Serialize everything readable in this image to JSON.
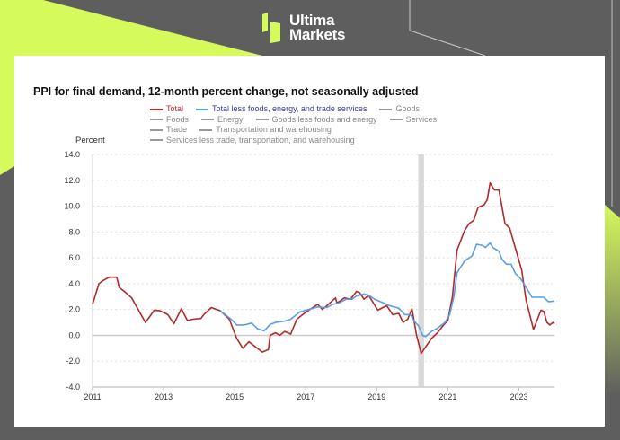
{
  "brand": {
    "line1": "Ultima",
    "line2": "Markets"
  },
  "colors": {
    "background": "#5e5e5e",
    "accent": "#d4fa5c",
    "total": "#b22a2a",
    "core": "#5b9ee6",
    "recession": "#d9d9d9"
  },
  "chart_data": {
    "type": "line",
    "title": "PPI for final demand, 12-month percent change, not seasonally adjusted",
    "ylabel": "Percent",
    "xlabel": "",
    "ylim": [
      -4,
      14
    ],
    "xlim": [
      2011,
      2024
    ],
    "yticks": [
      "14.0",
      "12.0",
      "10.0",
      "8.0",
      "6.0",
      "4.0",
      "2.0",
      "0.0",
      "-2.0",
      "-4.0"
    ],
    "xticks": [
      "2011",
      "2013",
      "2015",
      "2017",
      "2019",
      "2021",
      "2023"
    ],
    "recession": [
      2020.17,
      2020.33
    ],
    "legend": [
      [
        "Total",
        "Total less foods, energy, and trade services",
        "Goods"
      ],
      [
        "Foods",
        "Energy",
        "Goods less foods and energy",
        "Services"
      ],
      [
        "Trade",
        "Transportation and warehousing"
      ],
      [
        "Services less trade, transportation, and warehousing"
      ]
    ],
    "series": [
      {
        "name": "Total",
        "color": "#b22a2a",
        "points": [
          [
            2011.0,
            2.4
          ],
          [
            2011.18,
            4.0
          ],
          [
            2011.3,
            4.25
          ],
          [
            2011.47,
            4.5
          ],
          [
            2011.68,
            4.5
          ],
          [
            2011.75,
            3.7
          ],
          [
            2011.85,
            3.5
          ],
          [
            2011.98,
            3.2
          ],
          [
            2012.1,
            2.9
          ],
          [
            2012.49,
            1.0
          ],
          [
            2012.74,
            1.95
          ],
          [
            2012.9,
            1.9
          ],
          [
            2013.12,
            1.6
          ],
          [
            2013.29,
            0.9
          ],
          [
            2013.5,
            2.05
          ],
          [
            2013.67,
            1.15
          ],
          [
            2013.83,
            1.25
          ],
          [
            2014.05,
            1.3
          ],
          [
            2014.13,
            1.6
          ],
          [
            2014.34,
            2.15
          ],
          [
            2014.6,
            1.9
          ],
          [
            2014.85,
            1.25
          ],
          [
            2015.06,
            -0.25
          ],
          [
            2015.23,
            -1.0
          ],
          [
            2015.4,
            -0.5
          ],
          [
            2015.57,
            -0.85
          ],
          [
            2015.78,
            -1.3
          ],
          [
            2015.95,
            -1.1
          ],
          [
            2016.0,
            0.0
          ],
          [
            2016.15,
            0.2
          ],
          [
            2016.27,
            0.0
          ],
          [
            2016.41,
            0.3
          ],
          [
            2016.58,
            0.1
          ],
          [
            2016.75,
            1.25
          ],
          [
            2016.96,
            1.7
          ],
          [
            2017.17,
            2.1
          ],
          [
            2017.34,
            2.4
          ],
          [
            2017.47,
            2.0
          ],
          [
            2017.64,
            2.4
          ],
          [
            2017.84,
            2.9
          ],
          [
            2017.88,
            2.5
          ],
          [
            2018.09,
            2.9
          ],
          [
            2018.26,
            2.8
          ],
          [
            2018.43,
            3.4
          ],
          [
            2018.52,
            3.3
          ],
          [
            2018.64,
            2.8
          ],
          [
            2018.77,
            3.1
          ],
          [
            2019.03,
            1.95
          ],
          [
            2019.28,
            2.3
          ],
          [
            2019.45,
            1.6
          ],
          [
            2019.62,
            1.7
          ],
          [
            2019.74,
            1.0
          ],
          [
            2019.87,
            1.25
          ],
          [
            2019.99,
            2.05
          ],
          [
            2020.12,
            0.0
          ],
          [
            2020.25,
            -1.4
          ],
          [
            2020.54,
            -0.25
          ],
          [
            2020.71,
            0.2
          ],
          [
            2020.88,
            0.8
          ],
          [
            2021.0,
            1.15
          ],
          [
            2021.13,
            3.0
          ],
          [
            2021.26,
            6.6
          ],
          [
            2021.47,
            8.1
          ],
          [
            2021.6,
            8.65
          ],
          [
            2021.73,
            8.9
          ],
          [
            2021.85,
            9.9
          ],
          [
            2022.02,
            10.1
          ],
          [
            2022.11,
            10.5
          ],
          [
            2022.19,
            11.8
          ],
          [
            2022.31,
            11.25
          ],
          [
            2022.44,
            11.25
          ],
          [
            2022.61,
            8.65
          ],
          [
            2022.74,
            8.3
          ],
          [
            2023.08,
            5.05
          ],
          [
            2023.2,
            2.75
          ],
          [
            2023.41,
            0.45
          ],
          [
            2023.62,
            1.95
          ],
          [
            2023.7,
            1.85
          ],
          [
            2023.79,
            1.0
          ],
          [
            2023.87,
            0.8
          ],
          [
            2023.96,
            1.0
          ],
          [
            2024.0,
            0.9
          ]
        ]
      },
      {
        "name": "Total less foods, energy, and trade services",
        "color": "#5b9ee6",
        "points": [
          [
            2014.6,
            1.9
          ],
          [
            2014.9,
            1.25
          ],
          [
            2015.06,
            0.8
          ],
          [
            2015.27,
            0.8
          ],
          [
            2015.48,
            0.95
          ],
          [
            2015.65,
            0.5
          ],
          [
            2015.83,
            0.35
          ],
          [
            2016.0,
            0.85
          ],
          [
            2016.15,
            1.0
          ],
          [
            2016.41,
            1.1
          ],
          [
            2016.58,
            1.25
          ],
          [
            2016.83,
            1.8
          ],
          [
            2017.08,
            2.0
          ],
          [
            2017.34,
            2.2
          ],
          [
            2017.59,
            2.15
          ],
          [
            2017.76,
            2.4
          ],
          [
            2017.93,
            2.5
          ],
          [
            2018.14,
            2.8
          ],
          [
            2018.3,
            2.8
          ],
          [
            2018.43,
            3.05
          ],
          [
            2018.64,
            3.2
          ],
          [
            2018.77,
            3.1
          ],
          [
            2018.94,
            2.8
          ],
          [
            2019.2,
            2.5
          ],
          [
            2019.36,
            2.3
          ],
          [
            2019.62,
            2.1
          ],
          [
            2019.79,
            1.6
          ],
          [
            2019.95,
            1.6
          ],
          [
            2020.04,
            1.15
          ],
          [
            2020.17,
            0.75
          ],
          [
            2020.29,
            0.0
          ],
          [
            2020.37,
            -0.1
          ],
          [
            2020.54,
            0.3
          ],
          [
            2020.71,
            0.55
          ],
          [
            2020.92,
            1.0
          ],
          [
            2021.05,
            1.6
          ],
          [
            2021.17,
            3.0
          ],
          [
            2021.26,
            4.85
          ],
          [
            2021.47,
            5.75
          ],
          [
            2021.68,
            6.15
          ],
          [
            2021.81,
            7.05
          ],
          [
            2021.98,
            6.95
          ],
          [
            2022.06,
            6.8
          ],
          [
            2022.19,
            7.15
          ],
          [
            2022.27,
            6.8
          ],
          [
            2022.44,
            6.5
          ],
          [
            2022.52,
            5.9
          ],
          [
            2022.65,
            5.5
          ],
          [
            2022.78,
            5.5
          ],
          [
            2022.9,
            4.8
          ],
          [
            2023.03,
            4.45
          ],
          [
            2023.16,
            3.9
          ],
          [
            2023.37,
            2.95
          ],
          [
            2023.7,
            2.95
          ],
          [
            2023.83,
            2.6
          ],
          [
            2024.0,
            2.65
          ]
        ]
      }
    ]
  }
}
